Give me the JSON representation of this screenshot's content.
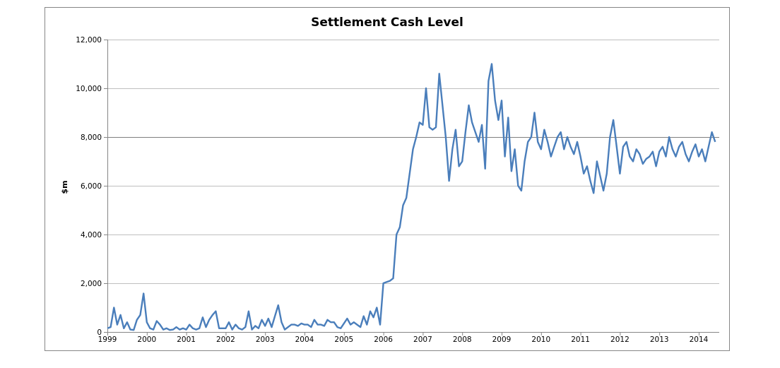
{
  "chart_data": {
    "type": "line",
    "title": "Settlement Cash Level",
    "xlabel": "",
    "ylabel": "$m",
    "ylim": [
      0,
      12000
    ],
    "yticks": [
      0,
      2000,
      4000,
      6000,
      8000,
      10000,
      12000
    ],
    "ytick_labels": [
      "0",
      "2,000",
      "4,000",
      "6,000",
      "8,000",
      "10,000",
      "12,000"
    ],
    "xlim": [
      1999,
      2014.5
    ],
    "xtick_labels": [
      "1999",
      "2000",
      "2001",
      "2002",
      "2003",
      "2004",
      "2005",
      "2006",
      "2007",
      "2008",
      "2009",
      "2010",
      "2011",
      "2012",
      "2013",
      "2014"
    ],
    "grid": "horizontal",
    "legend": "none",
    "line_color": "#4a7ebb",
    "series": [
      {
        "x_start": 1999,
        "x_step": "monthly",
        "values": [
          150,
          200,
          1000,
          300,
          700,
          150,
          400,
          100,
          80,
          500,
          700,
          1580,
          400,
          150,
          100,
          450,
          300,
          100,
          150,
          80,
          100,
          200,
          100,
          150,
          100,
          300,
          150,
          100,
          150,
          600,
          200,
          500,
          700,
          850,
          150,
          150,
          150,
          400,
          100,
          300,
          150,
          100,
          200,
          850,
          100,
          250,
          150,
          500,
          250,
          550,
          200,
          650,
          1100,
          400,
          100,
          200,
          300,
          300,
          250,
          350,
          300,
          300,
          200,
          500,
          300,
          300,
          250,
          500,
          400,
          400,
          200,
          150,
          350,
          550,
          300,
          400,
          300,
          200,
          650,
          300,
          850,
          600,
          1000,
          300,
          2000,
          2050,
          2100,
          2200,
          4000,
          4300,
          5200,
          5500,
          6500,
          7500,
          8000,
          8600,
          8500,
          10000,
          8400,
          8300,
          8400,
          10600,
          9300,
          8000,
          6200,
          7500,
          8300,
          6800,
          7000,
          8200,
          9300,
          8600,
          8200,
          7800,
          8500,
          6700,
          10300,
          11000,
          9500,
          8700,
          9500,
          7200,
          8800,
          6600,
          7500,
          6000,
          5800,
          7000,
          7800,
          8000,
          9000,
          7800,
          7500,
          8300,
          7800,
          7200,
          7600,
          8000,
          8200,
          7500,
          8000,
          7600,
          7300,
          7800,
          7200,
          6500,
          6800,
          6200,
          5700,
          7000,
          6400,
          5800,
          6500,
          8000,
          8700,
          7600,
          6500,
          7600,
          7800,
          7200,
          7000,
          7500,
          7300,
          6900,
          7100,
          7200,
          7400,
          6800,
          7400,
          7600,
          7200,
          8000,
          7500,
          7200,
          7600,
          7800,
          7300,
          7000,
          7400,
          7700,
          7200,
          7500,
          7000,
          7600,
          8200,
          7800
        ]
      }
    ]
  }
}
